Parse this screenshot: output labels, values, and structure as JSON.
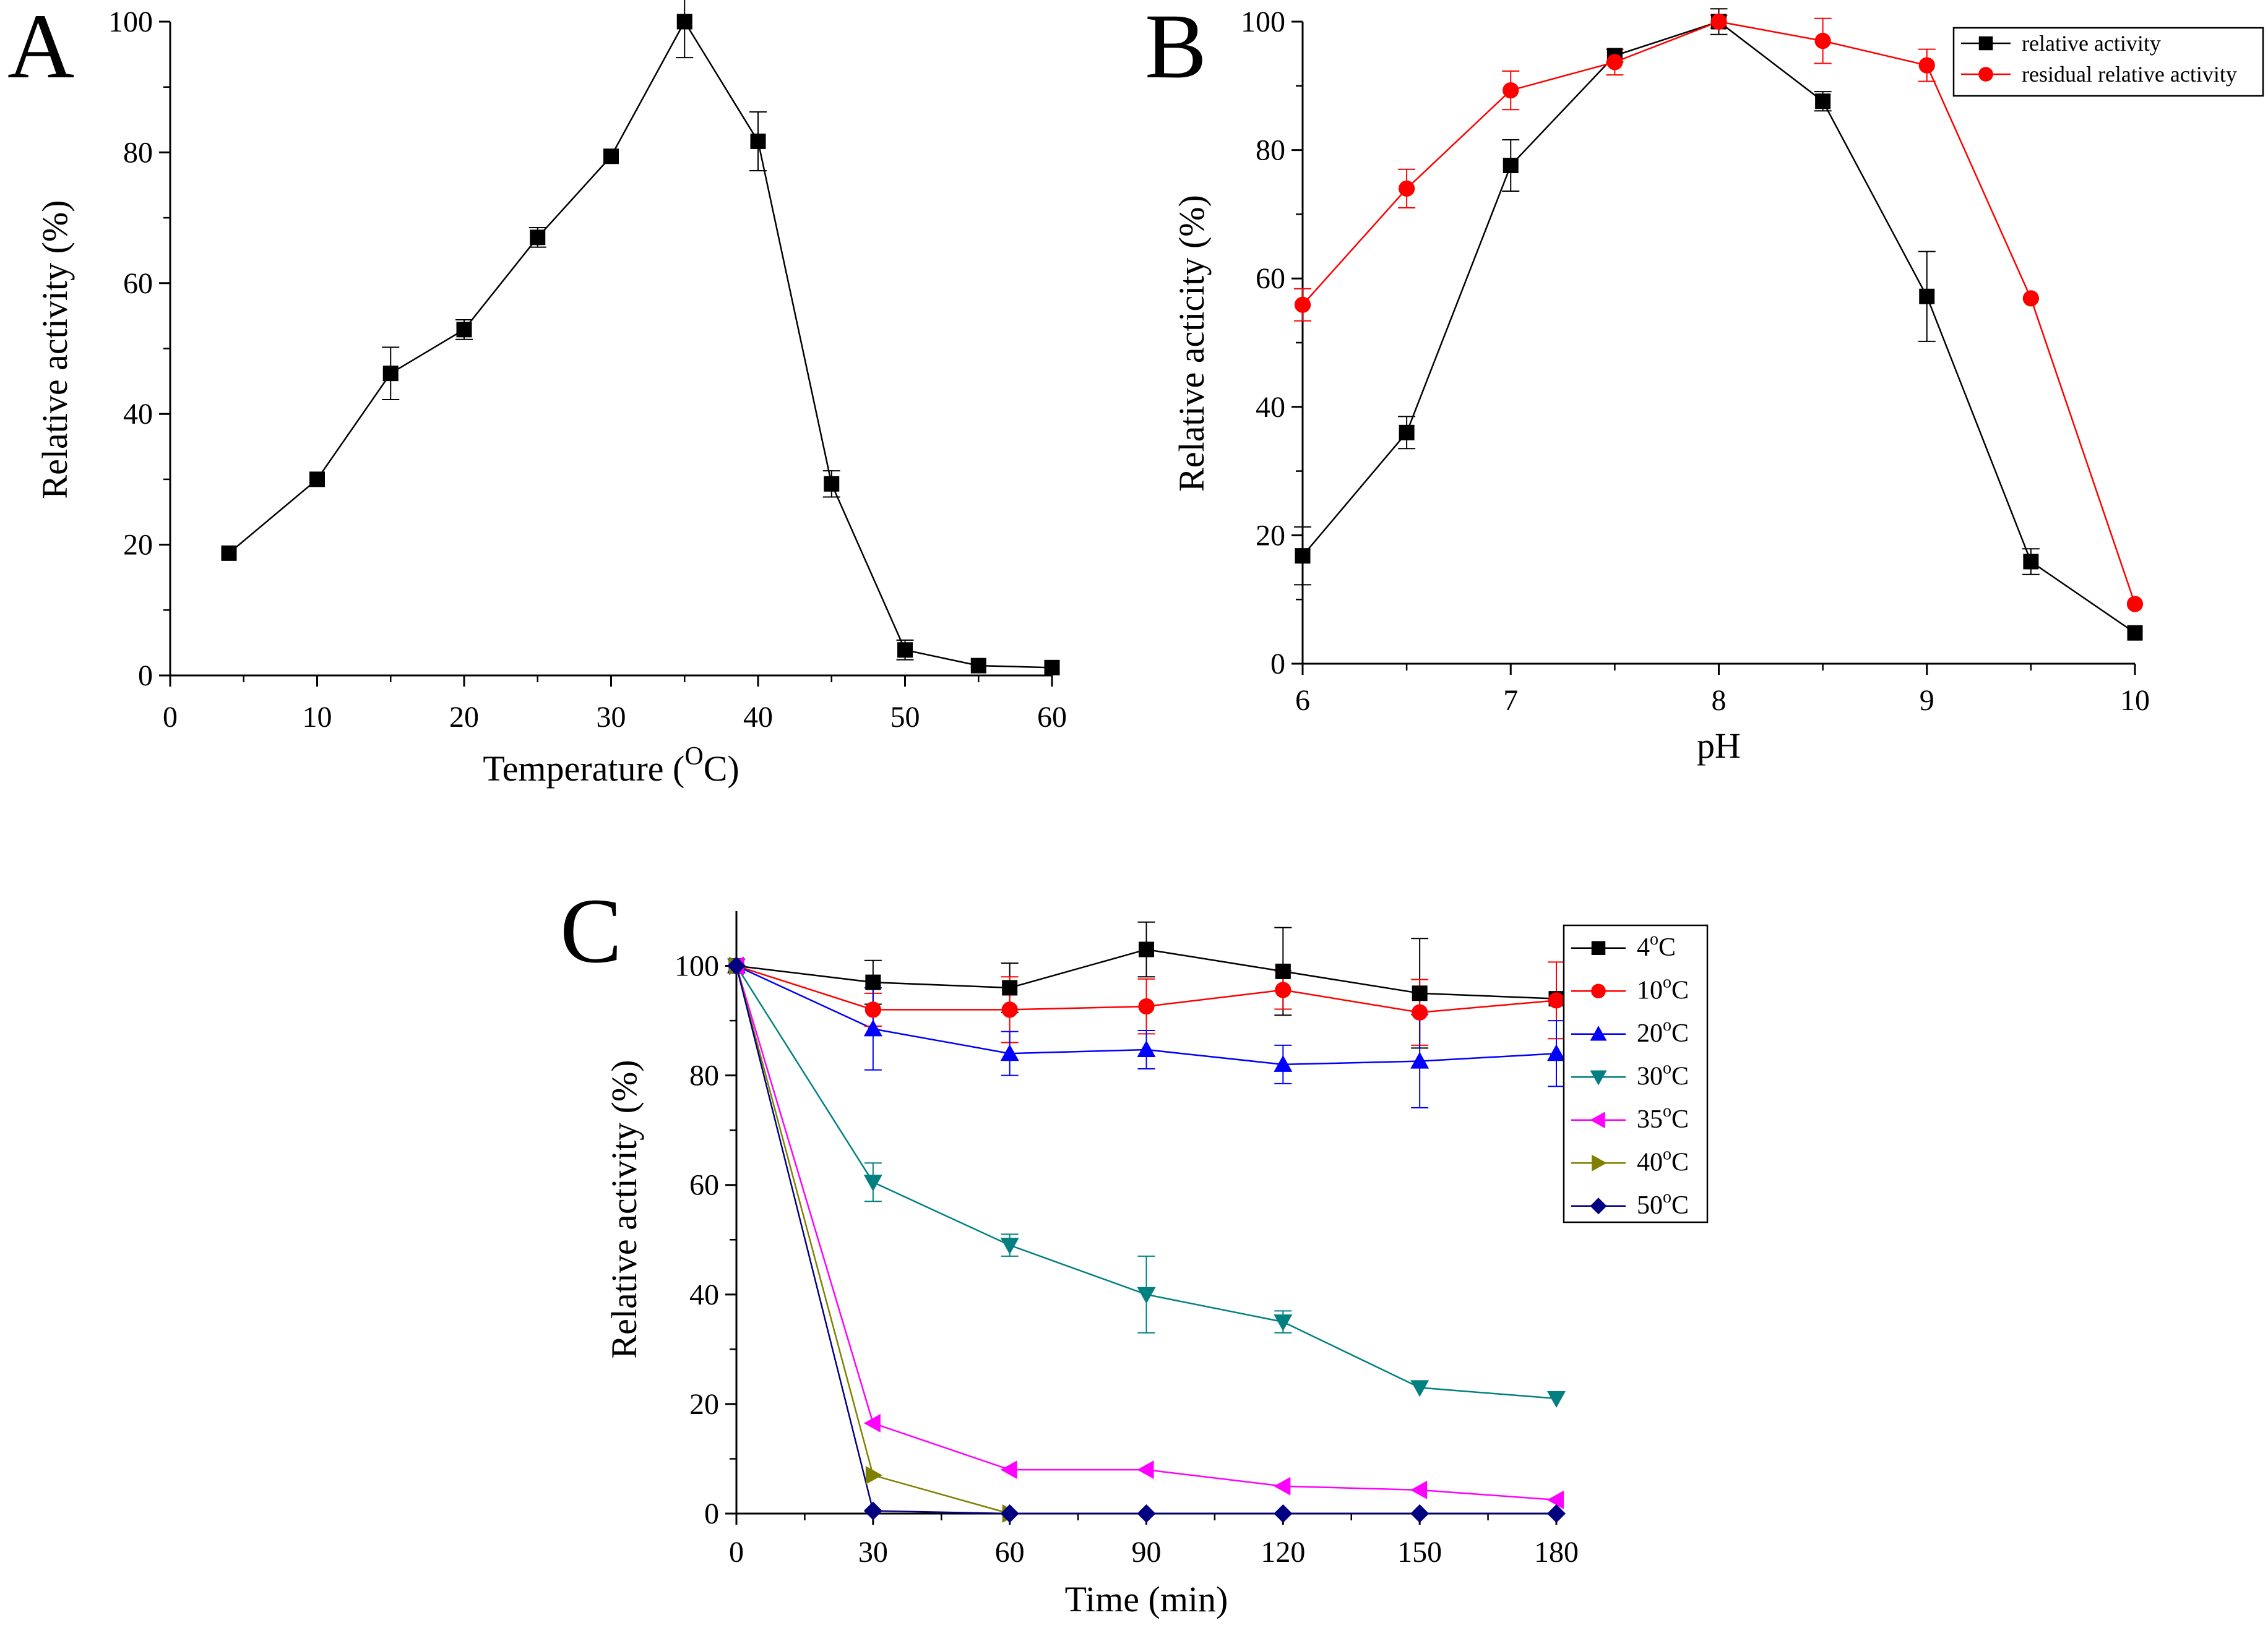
{
  "chart_data": [
    {
      "panel": "A",
      "type": "line",
      "xlabel": "Temperature (",
      "xlabel_sup": "O",
      "xlabel_tail": "C)",
      "ylabel": "Relative activity (%)",
      "xlim": [
        0,
        60
      ],
      "ylim": [
        0,
        100
      ],
      "xticks": [
        0,
        10,
        20,
        30,
        40,
        50,
        60
      ],
      "yticks": [
        0,
        20,
        40,
        60,
        80,
        100
      ],
      "series": [
        {
          "name": "relative activity",
          "color": "#000000",
          "marker": "square",
          "x": [
            4,
            10,
            15,
            20,
            25,
            30,
            35,
            40,
            45,
            50,
            55,
            60
          ],
          "y": [
            18.7,
            30,
            46.2,
            52.9,
            67,
            79.4,
            100,
            81.7,
            29.3,
            3.9,
            1.5,
            1.2
          ],
          "err": [
            0,
            0,
            4,
            1.5,
            1.5,
            0,
            5.5,
            4.5,
            2,
            1.5,
            0,
            0
          ]
        }
      ]
    },
    {
      "panel": "B",
      "type": "line",
      "xlabel": "pH",
      "ylabel": "Relative acticity (%)",
      "xlim": [
        6,
        10
      ],
      "ylim": [
        0,
        100
      ],
      "xticks": [
        6,
        7,
        8,
        9,
        10
      ],
      "yticks": [
        0,
        20,
        40,
        60,
        80,
        100
      ],
      "legend_position": "top-right",
      "series": [
        {
          "name": "relative activity",
          "color": "#000000",
          "marker": "square",
          "x": [
            6,
            6.5,
            7,
            7.5,
            8,
            8.5,
            9,
            9.5,
            10
          ],
          "y": [
            16.8,
            36,
            77.6,
            94.7,
            100,
            87.6,
            57.2,
            15.9,
            4.8
          ],
          "err": [
            4.5,
            2.5,
            4,
            1,
            2,
            1.5,
            7,
            2,
            0
          ]
        },
        {
          "name": "residual relative activity",
          "color": "#ff0000",
          "marker": "circle",
          "x": [
            6,
            6.5,
            7,
            7.5,
            8,
            8.5,
            9,
            9.5,
            10
          ],
          "y": [
            55.9,
            74,
            89.3,
            93.7,
            100,
            97,
            93.2,
            56.9,
            9.3
          ],
          "err": [
            2.5,
            3,
            3,
            2,
            1,
            3.5,
            2.5,
            0,
            0
          ]
        }
      ]
    },
    {
      "panel": "C",
      "type": "line",
      "xlabel": "Time (min)",
      "ylabel": "Relative activity (%)",
      "xlim": [
        0,
        180
      ],
      "ylim": [
        0,
        110
      ],
      "xticks": [
        0,
        30,
        60,
        90,
        120,
        150,
        180
      ],
      "yticks": [
        0,
        20,
        40,
        60,
        80,
        100
      ],
      "legend_position": "top-right",
      "series": [
        {
          "name": "4",
          "unit": "C",
          "degree": "o",
          "color": "#000000",
          "marker": "square",
          "x": [
            0,
            30,
            60,
            90,
            120,
            150,
            180
          ],
          "y": [
            100,
            97,
            96,
            103,
            99,
            95,
            94
          ],
          "err": [
            0,
            4,
            4.5,
            5,
            8,
            10,
            0
          ]
        },
        {
          "name": "10",
          "unit": "C",
          "degree": "o",
          "color": "#ff0000",
          "marker": "circle",
          "x": [
            0,
            30,
            60,
            90,
            120,
            150,
            180
          ],
          "y": [
            100,
            92,
            92,
            92.6,
            95.6,
            91.5,
            93.7
          ],
          "err": [
            0,
            3,
            6,
            5,
            3.5,
            6,
            7
          ]
        },
        {
          "name": "20",
          "unit": "C",
          "degree": "o",
          "color": "#0000ff",
          "marker": "triangle-up",
          "x": [
            0,
            30,
            60,
            90,
            120,
            150,
            180
          ],
          "y": [
            100,
            88.5,
            84,
            84.7,
            82,
            82.6,
            84
          ],
          "err": [
            0,
            7.5,
            4,
            3.5,
            3.5,
            8.5,
            6
          ]
        },
        {
          "name": "30",
          "unit": "C",
          "degree": "o",
          "color": "#008080",
          "marker": "triangle-down",
          "x": [
            0,
            30,
            60,
            90,
            120,
            150,
            180
          ],
          "y": [
            100,
            60.5,
            49,
            40,
            35,
            23,
            21
          ],
          "err": [
            0,
            3.5,
            2,
            7,
            2,
            0,
            0
          ]
        },
        {
          "name": "35",
          "unit": "C",
          "degree": "o",
          "color": "#ff00ff",
          "marker": "triangle-left",
          "x": [
            0,
            30,
            60,
            90,
            120,
            150,
            180
          ],
          "y": [
            100,
            16.5,
            8,
            8,
            5,
            4.3,
            2.5
          ],
          "err": [
            0,
            0,
            0,
            0,
            0,
            0,
            0
          ]
        },
        {
          "name": "40",
          "unit": "C",
          "degree": "o",
          "color": "#808000",
          "marker": "triangle-right",
          "x": [
            0,
            30,
            60
          ],
          "y": [
            100,
            7,
            0
          ],
          "err": [
            0,
            0,
            0
          ]
        },
        {
          "name": "50",
          "unit": "C",
          "degree": "o",
          "color": "#000080",
          "marker": "diamond",
          "x": [
            0,
            30,
            60,
            90,
            120,
            150,
            180
          ],
          "y": [
            100,
            0.5,
            0,
            0,
            0,
            0,
            0
          ],
          "err": [
            0,
            0,
            0,
            0,
            0,
            0,
            0
          ]
        }
      ]
    }
  ]
}
